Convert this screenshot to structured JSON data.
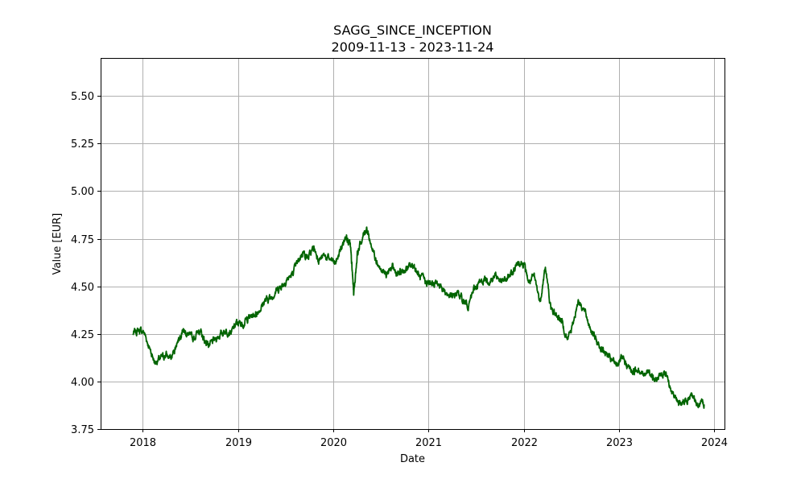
{
  "chart_data": {
    "type": "line",
    "title": "SAGG_SINCE_INCEPTION",
    "subtitle": "2009-11-13 - 2023-11-24",
    "xlabel": "Date",
    "ylabel": "Value [EUR]",
    "xlim": [
      "2017-07-23",
      "2024-02-10"
    ],
    "ylim": [
      3.75,
      5.7
    ],
    "x_ticks": [
      "2018",
      "2019",
      "2020",
      "2021",
      "2022",
      "2023",
      "2024"
    ],
    "y_ticks": [
      "3.75",
      "4.00",
      "4.25",
      "4.50",
      "4.75",
      "5.00",
      "5.25",
      "5.50"
    ],
    "grid": true,
    "line_color": "#006400",
    "series": [
      {
        "x": [
          "2017-11-24",
          "2017-12-15",
          "2018-01-05",
          "2018-01-26",
          "2018-02-16",
          "2018-03-09",
          "2018-03-30",
          "2018-04-20",
          "2018-05-11",
          "2018-06-01",
          "2018-06-22",
          "2018-07-13",
          "2018-08-03",
          "2018-08-24",
          "2018-09-14",
          "2018-10-05",
          "2018-10-26",
          "2018-11-16",
          "2018-12-07",
          "2018-12-28",
          "2019-01-18",
          "2019-02-08",
          "2019-03-01",
          "2019-03-22",
          "2019-04-12",
          "2019-05-03",
          "2019-05-24",
          "2019-06-14",
          "2019-07-05",
          "2019-07-26",
          "2019-08-16",
          "2019-09-06",
          "2019-09-27",
          "2019-10-18",
          "2019-11-08",
          "2019-11-29",
          "2019-12-20",
          "2020-01-10",
          "2020-01-31",
          "2020-02-21",
          "2020-03-06",
          "2020-03-13",
          "2020-03-20",
          "2020-04-03",
          "2020-04-24",
          "2020-05-08",
          "2020-05-22",
          "2020-06-12",
          "2020-07-03",
          "2020-07-24",
          "2020-08-14",
          "2020-09-04",
          "2020-09-25",
          "2020-10-16",
          "2020-11-06",
          "2020-11-27",
          "2020-12-18",
          "2021-01-08",
          "2021-01-29",
          "2021-02-19",
          "2021-03-12",
          "2021-04-02",
          "2021-04-23",
          "2021-05-14",
          "2021-06-04",
          "2021-06-25",
          "2021-07-16",
          "2021-08-06",
          "2021-08-27",
          "2021-09-17",
          "2021-10-08",
          "2021-10-29",
          "2021-11-19",
          "2021-12-10",
          "2021-12-31",
          "2022-01-21",
          "2022-02-11",
          "2022-03-04",
          "2022-03-25",
          "2022-04-15",
          "2022-05-06",
          "2022-05-27",
          "2022-06-17",
          "2022-07-08",
          "2022-07-29",
          "2022-08-19",
          "2022-09-09",
          "2022-09-30",
          "2022-10-21",
          "2022-11-11",
          "2022-12-02",
          "2022-12-23",
          "2023-01-13",
          "2023-02-03",
          "2023-02-24",
          "2023-03-17",
          "2023-04-07",
          "2023-04-28",
          "2023-05-19",
          "2023-06-09",
          "2023-06-30",
          "2023-07-21",
          "2023-08-11",
          "2023-09-01",
          "2023-09-22",
          "2023-10-13",
          "2023-11-03",
          "2023-11-24"
        ],
        "y": [
          4.25,
          4.27,
          4.26,
          4.18,
          4.1,
          4.12,
          4.14,
          4.12,
          4.2,
          4.27,
          4.25,
          4.22,
          4.27,
          4.22,
          4.19,
          4.22,
          4.25,
          4.27,
          4.26,
          4.31,
          4.3,
          4.33,
          4.35,
          4.37,
          4.42,
          4.44,
          4.47,
          4.5,
          4.53,
          4.56,
          4.62,
          4.68,
          4.65,
          4.7,
          4.64,
          4.66,
          4.64,
          4.62,
          4.7,
          4.77,
          4.72,
          4.6,
          4.46,
          4.68,
          4.76,
          4.81,
          4.73,
          4.65,
          4.58,
          4.56,
          4.6,
          4.56,
          4.58,
          4.6,
          4.61,
          4.55,
          4.53,
          4.51,
          4.52,
          4.5,
          4.46,
          4.44,
          4.47,
          4.42,
          4.4,
          4.49,
          4.52,
          4.54,
          4.53,
          4.56,
          4.52,
          4.54,
          4.57,
          4.63,
          4.62,
          4.52,
          4.55,
          4.42,
          4.6,
          4.38,
          4.35,
          4.32,
          4.22,
          4.3,
          4.43,
          4.38,
          4.3,
          4.23,
          4.18,
          4.15,
          4.11,
          4.09,
          4.12,
          4.08,
          4.05,
          4.07,
          4.03,
          4.06,
          4.0,
          4.03,
          4.05,
          3.95,
          3.9,
          3.88,
          3.91,
          3.92,
          3.87,
          3.88
        ]
      }
    ]
  }
}
